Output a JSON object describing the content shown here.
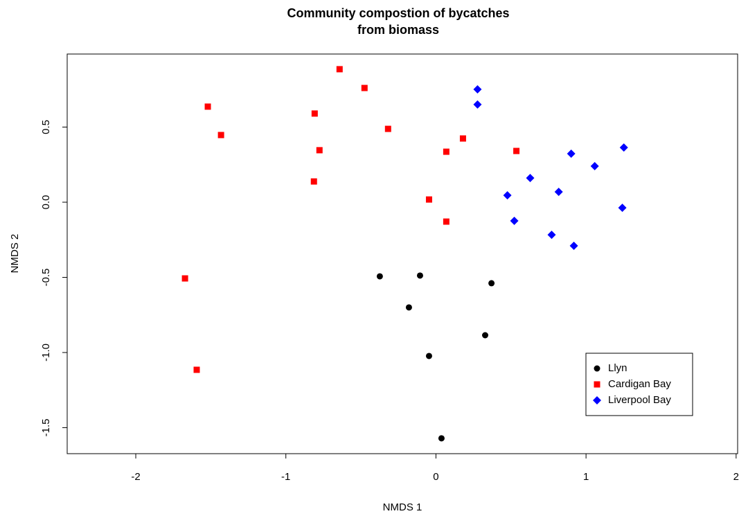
{
  "chart_data": {
    "type": "scatter",
    "title": [
      "Community compostion of bycatches",
      "from biomass"
    ],
    "x_label": "NMDS 1",
    "y_label": "NMDS 2",
    "xlim": [
      -2.457,
      2.01
    ],
    "ylim": [
      -1.673,
      0.986
    ],
    "xticks": [
      -2,
      -1,
      0,
      1,
      2
    ],
    "yticks": [
      -1.5,
      {
        "value": -1,
        "label": "-1.0"
      },
      -0.5,
      {
        "value": 0,
        "label": "0.0"
      },
      0.5
    ],
    "legend_position": "bottomright",
    "series": [
      {
        "name": "Llyn",
        "color": "#000000",
        "marker": "circle",
        "x": [
          -0.374,
          -0.106,
          -0.18,
          0.37,
          0.328,
          -0.046,
          0.037
        ],
        "values": [
          -0.493,
          -0.488,
          -0.7,
          -0.539,
          -0.885,
          -1.023,
          -1.571
        ]
      },
      {
        "name": "Cardigan Bay",
        "color": "#ff0000",
        "marker": "square",
        "x": [
          -0.642,
          -0.476,
          -1.52,
          -1.432,
          -0.808,
          -0.319,
          -0.776,
          -0.813,
          0.18,
          0.069,
          0.536,
          -0.046,
          0.069,
          -1.672,
          -1.594
        ],
        "values": [
          0.885,
          0.76,
          0.636,
          0.447,
          0.59,
          0.488,
          0.346,
          0.138,
          0.424,
          0.336,
          0.341,
          0.018,
          -0.129,
          -0.507,
          -1.115
        ]
      },
      {
        "name": "Liverpool Bay",
        "color": "#0000ff",
        "marker": "diamond",
        "x": [
          0.277,
          0.277,
          1.252,
          0.901,
          1.058,
          0.628,
          0.818,
          0.476,
          1.242,
          0.522,
          0.771,
          0.919
        ],
        "values": [
          0.751,
          0.65,
          0.364,
          0.323,
          0.24,
          0.161,
          0.069,
          0.046,
          -0.037,
          -0.124,
          -0.217,
          -0.29
        ]
      }
    ]
  }
}
